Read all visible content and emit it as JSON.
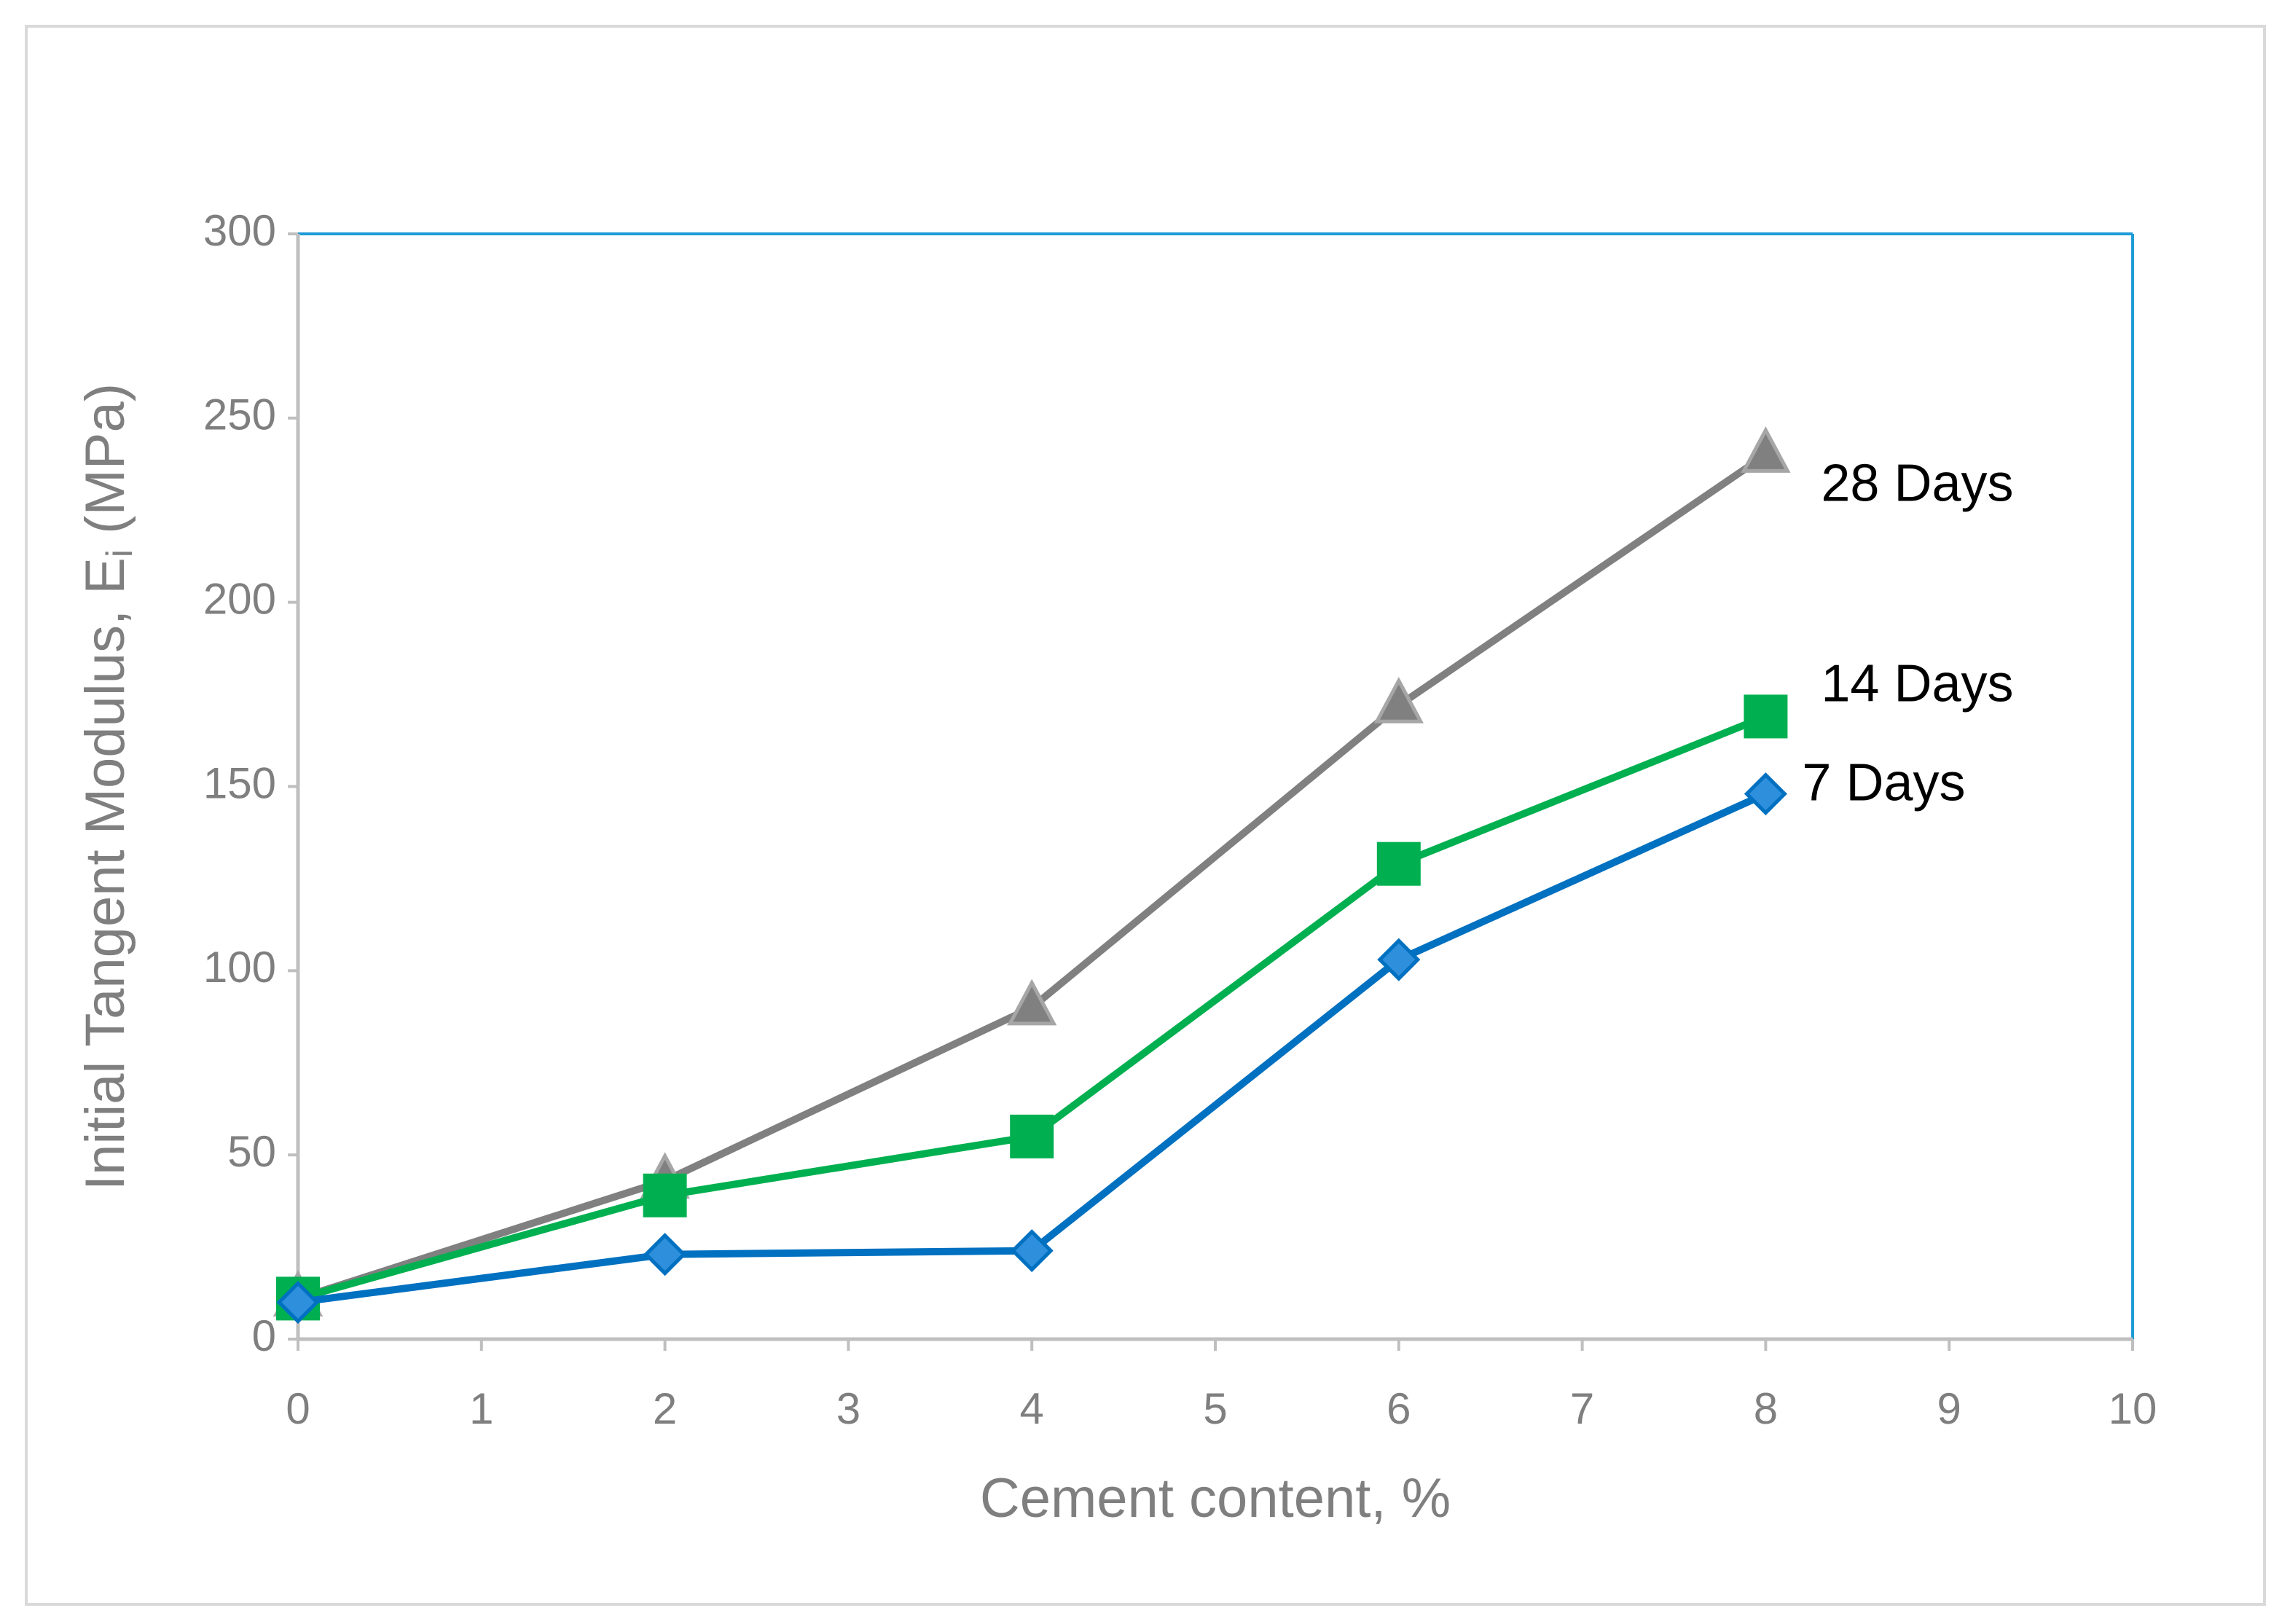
{
  "chart_data": {
    "type": "line",
    "xlabel": "Cement content, %",
    "ylabel": [
      "Initial Tangent Modulus, E",
      "i",
      " (MPa)"
    ],
    "x": [
      0,
      2,
      4,
      6,
      8
    ],
    "series": [
      {
        "name": "7 Days",
        "color": "#0070c0",
        "marker": "diamond",
        "values": [
          10,
          23,
          24,
          103,
          148
        ]
      },
      {
        "name": "14 Days",
        "color": "#00b050",
        "marker": "square",
        "values": [
          11,
          39,
          55,
          129,
          169
        ]
      },
      {
        "name": "28 Days",
        "color": "#808080",
        "marker": "triangle",
        "values": [
          11,
          43,
          90,
          172,
          240
        ]
      }
    ],
    "xlim": [
      0,
      10
    ],
    "xticks": [
      0,
      1,
      2,
      3,
      4,
      5,
      6,
      7,
      8,
      9,
      10
    ],
    "ylim": [
      0,
      300
    ],
    "yticks": [
      0,
      50,
      100,
      150,
      200,
      250,
      300
    ],
    "grid": false
  }
}
